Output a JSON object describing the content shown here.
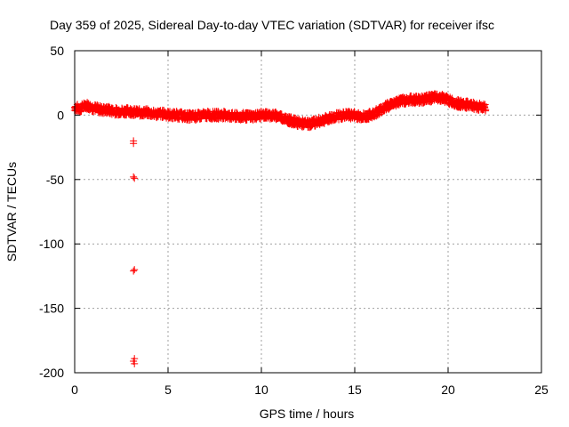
{
  "chart_data": {
    "type": "scatter",
    "title": "Day 359 of 2025, Sidereal Day-to-day VTEC variation (SDTVAR) for receiver ifsc",
    "xlabel": "GPS time / hours",
    "ylabel": "SDTVAR / TECUs",
    "xlim": [
      0,
      25
    ],
    "ylim": [
      -200,
      50
    ],
    "x_ticks": [
      0,
      5,
      10,
      15,
      20,
      25
    ],
    "y_ticks": [
      -200,
      -150,
      -100,
      -50,
      0,
      50
    ],
    "grid": true,
    "marker": "+",
    "colors": {
      "series": "#ff0000",
      "axis": "#000000",
      "grid": "#a0a0a0"
    },
    "trend": [
      [
        0.0,
        6
      ],
      [
        0.3,
        5
      ],
      [
        0.6,
        8
      ],
      [
        0.9,
        6
      ],
      [
        1.2,
        5
      ],
      [
        1.5,
        4
      ],
      [
        1.8,
        4
      ],
      [
        2.1,
        3
      ],
      [
        2.4,
        3
      ],
      [
        2.7,
        3
      ],
      [
        3.0,
        3
      ],
      [
        3.3,
        2
      ],
      [
        3.6,
        2
      ],
      [
        3.9,
        2
      ],
      [
        4.2,
        1
      ],
      [
        4.5,
        1
      ],
      [
        4.8,
        1
      ],
      [
        5.1,
        0
      ],
      [
        5.5,
        0
      ],
      [
        6.0,
        -1
      ],
      [
        6.5,
        -1
      ],
      [
        7.0,
        0
      ],
      [
        7.5,
        0
      ],
      [
        8.0,
        0
      ],
      [
        8.5,
        -1
      ],
      [
        9.0,
        -1
      ],
      [
        9.5,
        -1
      ],
      [
        10.0,
        0
      ],
      [
        10.5,
        0
      ],
      [
        11.0,
        -1
      ],
      [
        11.5,
        -4
      ],
      [
        12.0,
        -6
      ],
      [
        12.5,
        -7
      ],
      [
        13.0,
        -5
      ],
      [
        13.5,
        -3
      ],
      [
        14.0,
        -1
      ],
      [
        14.5,
        0
      ],
      [
        15.0,
        0
      ],
      [
        15.3,
        -1
      ],
      [
        15.6,
        -1
      ],
      [
        16.0,
        1
      ],
      [
        16.5,
        5
      ],
      [
        17.0,
        9
      ],
      [
        17.5,
        11
      ],
      [
        18.0,
        12
      ],
      [
        18.5,
        12
      ],
      [
        19.0,
        13
      ],
      [
        19.5,
        14
      ],
      [
        19.8,
        13
      ],
      [
        20.1,
        11
      ],
      [
        20.5,
        9
      ],
      [
        21.0,
        8
      ],
      [
        21.5,
        7
      ],
      [
        22.0,
        6
      ]
    ],
    "spread": 3,
    "step": 0.04,
    "outliers": [
      {
        "x": 3.15,
        "y": -20
      },
      {
        "x": 3.15,
        "y": -22
      },
      {
        "x": 3.2,
        "y": -49
      },
      {
        "x": 3.15,
        "y": -48
      },
      {
        "x": 3.2,
        "y": -120
      },
      {
        "x": 3.15,
        "y": -121
      },
      {
        "x": 3.2,
        "y": -189
      },
      {
        "x": 3.15,
        "y": -191
      },
      {
        "x": 3.2,
        "y": -193
      }
    ]
  }
}
